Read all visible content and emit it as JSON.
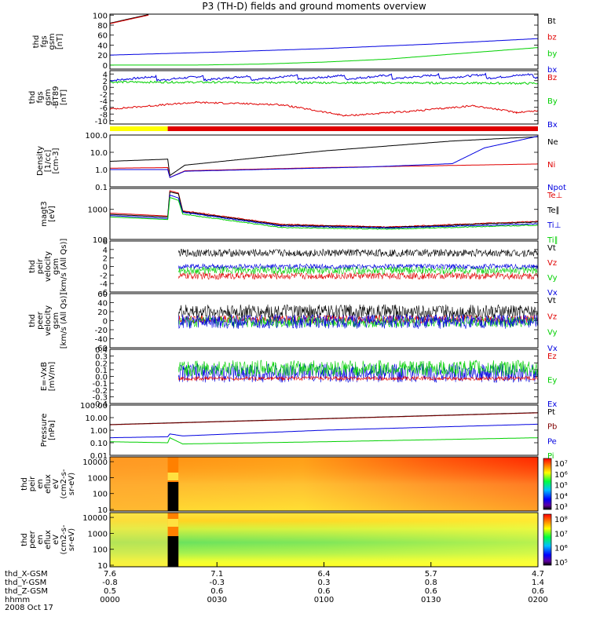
{
  "title": "P3 (TH-D) fields and ground moments overview",
  "colors": {
    "black": "#000000",
    "red": "#e00000",
    "green": "#00d000",
    "blue": "#0000e0",
    "yellow": "#ffff00",
    "darkred": "#800000"
  },
  "chart_data": [
    {
      "type": "line",
      "name": "fgs-gsm",
      "ylabel_lines": [
        "thd",
        "fgs",
        "gsm",
        "[nT]"
      ],
      "yticks": [
        "100",
        "80",
        "60",
        "40",
        "20",
        "0"
      ],
      "ylim": [
        -8,
        102
      ],
      "series": [
        {
          "name": "Bt",
          "color": "black",
          "values": [
            [
              0,
              84
            ],
            [
              18,
              101
            ]
          ]
        },
        {
          "name": "bz",
          "color": "red",
          "values": [
            [
              0,
              83
            ],
            [
              18,
              100
            ]
          ]
        },
        {
          "name": "by",
          "color": "green",
          "values": [
            [
              0,
              0
            ],
            [
              40,
              0
            ],
            [
              70,
              2
            ],
            [
              100,
              6
            ],
            [
              130,
              12
            ],
            [
              160,
              22
            ],
            [
              200,
              35
            ]
          ]
        },
        {
          "name": "bx",
          "color": "blue",
          "values": [
            [
              0,
              20
            ],
            [
              50,
              26
            ],
            [
              100,
              33
            ],
            [
              150,
              42
            ],
            [
              200,
              53
            ]
          ]
        }
      ],
      "legend": [
        "Bt",
        "bz",
        "by",
        "bx"
      ]
    },
    {
      "type": "line",
      "name": "fgs-gsm-detrended",
      "ylabel_lines": [
        "thd",
        "fgs",
        "gsm",
        "-BT89",
        "[nT]"
      ],
      "yticks": [
        "4",
        "2",
        "0",
        "-2",
        "-4",
        "-6",
        "-8",
        "-10"
      ],
      "ylim": [
        -11,
        5
      ],
      "series": [
        {
          "name": "Bz",
          "color": "red",
          "values": [
            [
              0,
              -6.5
            ],
            [
              40,
              -4.5
            ],
            [
              80,
              -5.2
            ],
            [
              110,
              -8.5
            ],
            [
              140,
              -7.2
            ],
            [
              170,
              -5.5
            ],
            [
              190,
              -7.5
            ],
            [
              200,
              -7
            ]
          ]
        },
        {
          "name": "By",
          "color": "green",
          "values": [
            [
              0,
              1.6
            ],
            [
              200,
              1.2
            ]
          ]
        },
        {
          "name": "Bx",
          "color": "blue",
          "values": [
            [
              0,
              2.6
            ],
            [
              200,
              3.4
            ]
          ]
        }
      ],
      "legend": [
        "Bz",
        "By",
        "Bx"
      ],
      "mode_bar": [
        {
          "x0": 0,
          "x1": 27,
          "color": "yellow"
        },
        {
          "x0": 27,
          "x1": 200,
          "color": "red"
        }
      ]
    },
    {
      "type": "line",
      "name": "density",
      "scale": "log",
      "ylabel_lines": [
        "Density",
        "[1/cc]",
        "[cm-3]"
      ],
      "yticks": [
        "100.0",
        "10.0",
        "1.0",
        "0.1"
      ],
      "ylim": [
        0.1,
        100
      ],
      "series": [
        {
          "name": "Ne",
          "color": "black",
          "values": [
            [
              0,
              3
            ],
            [
              27,
              4
            ],
            [
              28,
              0.45
            ],
            [
              35,
              1.8
            ],
            [
              100,
              12
            ],
            [
              160,
              45
            ],
            [
              200,
              80
            ]
          ]
        },
        {
          "name": "Ni",
          "color": "red",
          "values": [
            [
              0,
              1.2
            ],
            [
              27,
              1.3
            ],
            [
              28,
              0.35
            ],
            [
              35,
              0.85
            ],
            [
              100,
              1.3
            ],
            [
              200,
              2.1
            ]
          ]
        },
        {
          "name": "Npot",
          "color": "blue",
          "values": [
            [
              0,
              1.0
            ],
            [
              27,
              1.0
            ],
            [
              28,
              0.35
            ],
            [
              35,
              0.8
            ],
            [
              120,
              1.4
            ],
            [
              160,
              2.2
            ],
            [
              175,
              18
            ],
            [
              200,
              85
            ]
          ]
        }
      ],
      "legend": [
        "Ne",
        "Ni",
        "Npot"
      ]
    },
    {
      "type": "line",
      "name": "temperature",
      "scale": "log",
      "ylabel_lines": [
        "magt3",
        "[eV]"
      ],
      "yticks": [
        "1000",
        "100"
      ],
      "ylim": [
        100,
        5000
      ],
      "series": [
        {
          "name": "Te⊥",
          "color": "red",
          "values": [
            [
              0,
              750
            ],
            [
              27,
              600
            ],
            [
              28,
              4200
            ],
            [
              32,
              3500
            ],
            [
              34,
              900
            ],
            [
              80,
              320
            ],
            [
              130,
              260
            ],
            [
              200,
              400
            ]
          ]
        },
        {
          "name": "Te∥",
          "color": "black",
          "values": [
            [
              0,
              680
            ],
            [
              27,
              560
            ],
            [
              28,
              3800
            ],
            [
              32,
              3300
            ],
            [
              34,
              850
            ],
            [
              80,
              300
            ],
            [
              130,
              250
            ],
            [
              200,
              380
            ]
          ]
        },
        {
          "name": "Ti⊥",
          "color": "blue",
          "values": [
            [
              0,
              620
            ],
            [
              27,
              500
            ],
            [
              28,
              3000
            ],
            [
              32,
              2400
            ],
            [
              34,
              800
            ],
            [
              80,
              280
            ],
            [
              130,
              240
            ],
            [
              200,
              330
            ]
          ]
        },
        {
          "name": "Ti∥",
          "color": "green",
          "values": [
            [
              0,
              560
            ],
            [
              27,
              460
            ],
            [
              28,
              2500
            ],
            [
              32,
              2000
            ],
            [
              34,
              700
            ],
            [
              80,
              250
            ],
            [
              130,
              220
            ],
            [
              200,
              300
            ]
          ]
        }
      ],
      "legend": [
        "Te⊥",
        "Te∥",
        "Ti⊥",
        "Ti∥"
      ]
    },
    {
      "type": "line",
      "name": "peir-velocity",
      "noisy": true,
      "ylabel_lines": [
        "thd",
        "peir",
        "velocity",
        "gsm",
        "[km/s (All Qs)]"
      ],
      "yticks": [
        "6",
        "4",
        "2",
        "0",
        "-2",
        "-4",
        "-6"
      ],
      "ylim": [
        -6,
        6
      ],
      "start": 32,
      "series": [
        {
          "name": "Vt",
          "color": "black",
          "mean": 3.2,
          "amp": 0.9
        },
        {
          "name": "Vz",
          "color": "red",
          "mean": -2.2,
          "amp": 0.8
        },
        {
          "name": "Vy",
          "color": "green",
          "mean": -0.9,
          "amp": 0.9
        },
        {
          "name": "Vx",
          "color": "blue",
          "mean": 0.0,
          "amp": 0.6
        }
      ],
      "legend": [
        "Vt",
        "Vz",
        "Vy",
        "Vx"
      ]
    },
    {
      "type": "line",
      "name": "peer-velocity",
      "noisy": true,
      "ylabel_lines": [
        "thd",
        "peer",
        "velocity",
        "gsm",
        "[km/s (All Qs)]"
      ],
      "yticks": [
        "60",
        "40",
        "20",
        "0",
        "-20",
        "-40",
        "-60"
      ],
      "ylim": [
        -60,
        60
      ],
      "start": 32,
      "series": [
        {
          "name": "Vt",
          "color": "black",
          "mean": 20,
          "amp": 16
        },
        {
          "name": "Vz",
          "color": "red",
          "mean": 3,
          "amp": 9
        },
        {
          "name": "Vy",
          "color": "green",
          "mean": -3,
          "amp": 12
        },
        {
          "name": "Vx",
          "color": "blue",
          "mean": -2,
          "amp": 16
        }
      ],
      "legend": [
        "Vt",
        "Vz",
        "Vy",
        "Vx"
      ]
    },
    {
      "type": "line",
      "name": "e-field",
      "noisy": true,
      "ylabel_lines": [
        "E=-VxB",
        "[mV/m]"
      ],
      "yticks": [
        "0.4",
        "0.3",
        "0.2",
        "0.1",
        "0.0",
        "-0.1",
        "-0.2",
        "-0.3",
        "-0.4"
      ],
      "ylim": [
        -0.4,
        0.4
      ],
      "start": 32,
      "series": [
        {
          "name": "Ex",
          "color": "blue",
          "mean": 0.05,
          "amp": 0.14
        },
        {
          "name": "Ey",
          "color": "green",
          "mean": 0.12,
          "amp": 0.12
        },
        {
          "name": "Ez",
          "color": "red",
          "mean": -0.03,
          "amp": 0.03
        }
      ],
      "legend": [
        "Ez",
        "Ey",
        "Ex"
      ]
    },
    {
      "type": "line",
      "name": "pressure",
      "scale": "log",
      "ylabel_lines": [
        "Pressure",
        "[nPa]"
      ],
      "yticks": [
        "100.00",
        "10.00",
        "1.00",
        "0.10",
        "0.01"
      ],
      "ylim": [
        0.01,
        100
      ],
      "series": [
        {
          "name": "Pt",
          "color": "black",
          "values": [
            [
              0,
              2.8
            ],
            [
              200,
              25
            ]
          ]
        },
        {
          "name": "Pb",
          "color": "darkred",
          "values": [
            [
              0,
              2.7
            ],
            [
              200,
              24
            ]
          ]
        },
        {
          "name": "Pe",
          "color": "blue",
          "values": [
            [
              0,
              0.25
            ],
            [
              27,
              0.3
            ],
            [
              28,
              0.5
            ],
            [
              34,
              0.35
            ],
            [
              100,
              1.0
            ],
            [
              200,
              3.0
            ]
          ]
        },
        {
          "name": "Pi",
          "color": "green",
          "values": [
            [
              0,
              0.12
            ],
            [
              27,
              0.1
            ],
            [
              28,
              0.25
            ],
            [
              34,
              0.08
            ],
            [
              100,
              0.12
            ],
            [
              200,
              0.25
            ]
          ]
        }
      ],
      "legend": [
        "Pt",
        "Pb",
        "Pe",
        "Pi"
      ]
    },
    {
      "type": "heatmap",
      "name": "peir-spectrogram",
      "ylabel_lines": [
        "thd",
        "peir",
        "en",
        "eflux",
        "eV",
        "(cm2-s-",
        "sr-eV)"
      ],
      "yticks": [
        "10000",
        "1000",
        "100",
        "10"
      ],
      "ylim": [
        8,
        20000
      ],
      "colorbar_ticks": [
        "10⁷",
        "10⁶",
        "10⁵",
        "10⁴",
        "10³"
      ],
      "gap": [
        27,
        32
      ]
    },
    {
      "type": "heatmap",
      "name": "peer-spectrogram",
      "ylabel_lines": [
        "thd",
        "peer",
        "en",
        "eflux",
        "eV",
        "(cm2-s-",
        "sr-eV)"
      ],
      "yticks": [
        "10000",
        "1000",
        "100",
        "10"
      ],
      "ylim": [
        8,
        20000
      ],
      "colorbar_ticks": [
        "10⁸",
        "10⁷",
        "10⁶",
        "10⁵"
      ],
      "gap": [
        27,
        32
      ]
    }
  ],
  "time_axis": {
    "row_labels": [
      "thd_X-GSM",
      "thd_Y-GSM",
      "thd_Z-GSM",
      "hhmm",
      "2008 Oct 17"
    ],
    "ticks": [
      {
        "t": 0,
        "x": "7.6",
        "y": "-0.8",
        "z": "0.5",
        "hhmm": "0000"
      },
      {
        "t": 50,
        "x": "7.1",
        "y": "-0.3",
        "z": "0.6",
        "hhmm": "0030"
      },
      {
        "t": 100,
        "x": "6.4",
        "y": "0.3",
        "z": "0.6",
        "hhmm": "0100"
      },
      {
        "t": 150,
        "x": "5.7",
        "y": "0.8",
        "z": "0.6",
        "hhmm": "0130"
      },
      {
        "t": 200,
        "x": "4.7",
        "y": "1.4",
        "z": "0.6",
        "hhmm": "0200"
      }
    ]
  }
}
